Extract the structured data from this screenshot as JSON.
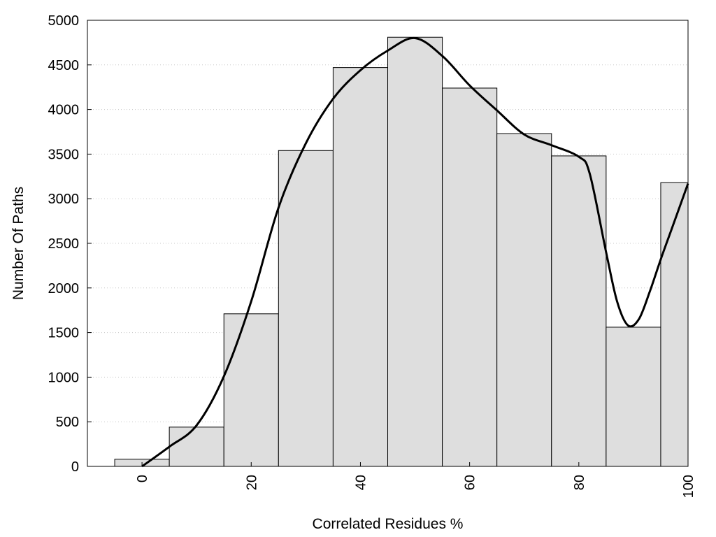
{
  "chart_data": {
    "type": "bar",
    "title": "",
    "xlabel": "Correlated Residues %",
    "ylabel": "Number Of Paths",
    "xlim": [
      -10,
      100
    ],
    "ylim": [
      0,
      5000
    ],
    "x_ticks": [
      "0",
      "20",
      "40",
      "60",
      "80",
      "100"
    ],
    "y_ticks": [
      "0",
      "500",
      "1000",
      "1500",
      "2000",
      "2500",
      "3000",
      "3500",
      "4000",
      "4500",
      "5000"
    ],
    "grid": "horizontal dotted",
    "bin_width": 10,
    "bars": [
      {
        "x": 0,
        "value": 80
      },
      {
        "x": 10,
        "value": 440
      },
      {
        "x": 20,
        "value": 1710
      },
      {
        "x": 30,
        "value": 3540
      },
      {
        "x": 40,
        "value": 4470
      },
      {
        "x": 50,
        "value": 4810
      },
      {
        "x": 60,
        "value": 4240
      },
      {
        "x": 70,
        "value": 3730
      },
      {
        "x": 80,
        "value": 3480
      },
      {
        "x": 90,
        "value": 1560
      },
      {
        "x": 100,
        "value": 3180
      }
    ],
    "curve": {
      "type": "line",
      "x": [
        0,
        5,
        10,
        15,
        20,
        25,
        30,
        35,
        40,
        45,
        50,
        55,
        60,
        65,
        70,
        75,
        80,
        82,
        85,
        87,
        89,
        91,
        93,
        95,
        97,
        100
      ],
      "y": [
        0,
        220,
        460,
        1010,
        1850,
        2900,
        3620,
        4120,
        4440,
        4660,
        4800,
        4600,
        4270,
        3990,
        3720,
        3600,
        3470,
        3280,
        2400,
        1850,
        1580,
        1650,
        1960,
        2320,
        2660,
        3170
      ]
    },
    "colors": {
      "bar_fill": "#dedede",
      "bar_stroke": "#000000",
      "curve": "#000000",
      "grid": "#c8c8c8"
    }
  }
}
